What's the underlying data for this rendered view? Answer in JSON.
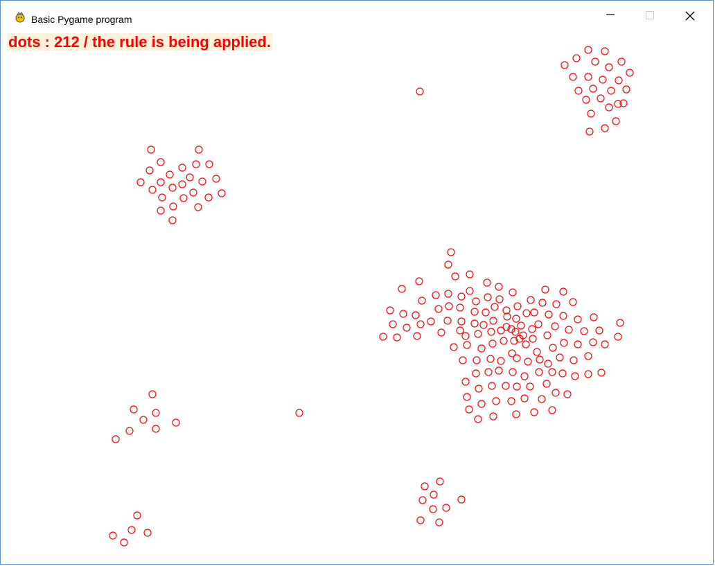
{
  "window": {
    "title": "Basic Pygame program",
    "controls": {
      "minimize_icon": "minimize-icon",
      "maximize_icon": "maximize-icon",
      "close_icon": "close-icon"
    },
    "app_icon": "pygame-icon"
  },
  "canvas": {
    "status_text": "dots : 212 / the rule is being applied.",
    "status_color": "#ff0000",
    "status_bg": "#fff2dc",
    "dot_color": "#ff0000",
    "dot_count": 212
  }
}
